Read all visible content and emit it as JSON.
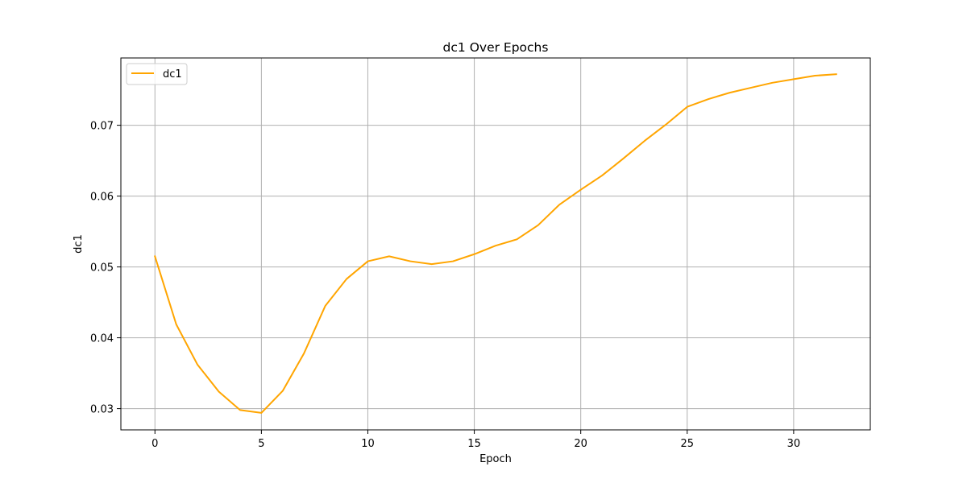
{
  "chart_data": {
    "type": "line",
    "title": "dc1 Over Epochs",
    "xlabel": "Epoch",
    "ylabel": "dc1",
    "xlim": [
      -1.6,
      33.6
    ],
    "ylim": [
      0.027,
      0.0795
    ],
    "xticks": [
      0,
      5,
      10,
      15,
      20,
      25,
      30
    ],
    "yticks": [
      0.03,
      0.04,
      0.05,
      0.06,
      0.07
    ],
    "ytick_labels": [
      "0.03",
      "0.04",
      "0.05",
      "0.06",
      "0.07"
    ],
    "grid": true,
    "legend_position": "top-left",
    "series": [
      {
        "name": "dc1",
        "color": "#FFA500",
        "x": [
          0,
          1,
          2,
          3,
          4,
          5,
          6,
          7,
          8,
          9,
          10,
          11,
          12,
          13,
          14,
          15,
          16,
          17,
          18,
          19,
          20,
          21,
          22,
          23,
          24,
          25,
          26,
          27,
          28,
          29,
          30,
          31,
          32
        ],
        "values": [
          0.0515,
          0.0419,
          0.0362,
          0.0324,
          0.0298,
          0.0294,
          0.0325,
          0.0378,
          0.0445,
          0.0483,
          0.0508,
          0.0515,
          0.0508,
          0.0504,
          0.0508,
          0.0518,
          0.053,
          0.0539,
          0.0559,
          0.0588,
          0.0609,
          0.0629,
          0.0653,
          0.0678,
          0.0701,
          0.0726,
          0.0737,
          0.0746,
          0.0753,
          0.076,
          0.0765,
          0.077,
          0.0772
        ]
      }
    ]
  }
}
